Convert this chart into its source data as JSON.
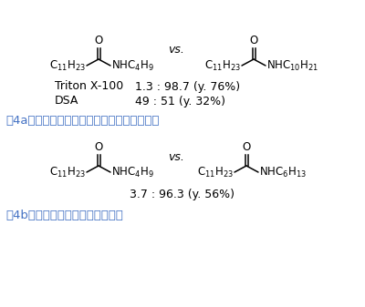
{
  "background_color": "#ffffff",
  "fig4a_caption": "図4a．　ブチルアミンとデシルアミンの競合",
  "fig4b_caption": "図4b．　ヘキシルアミンとの競合",
  "vs_text": "vs.",
  "triton_label": "Triton X-100",
  "dsa_label": "DSA",
  "triton_ratio": "1.3 : 98.7 (y. 76%)",
  "dsa_ratio": "49 : 51 (y. 32%)",
  "ratio_4b": "3.7 : 96.3 (y. 56%)",
  "caption_color": "#4472c4",
  "text_color": "#000000",
  "fontsize_chem": 8.5,
  "fontsize_ratio": 9.0,
  "fontsize_caption": 9.5,
  "fontsize_vs": 9.0
}
